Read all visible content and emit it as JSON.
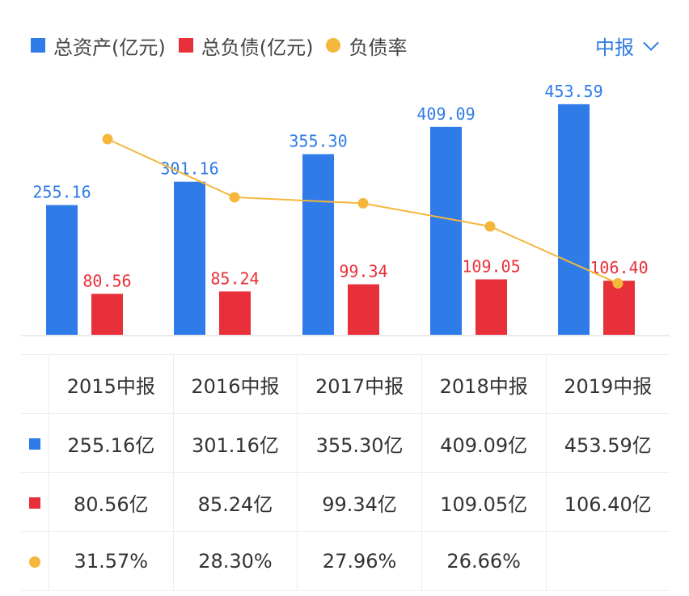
{
  "legend": {
    "assets_label": "总资产(亿元)",
    "liabilities_label": "总负债(亿元)",
    "ratio_label": "负债率"
  },
  "period_selector": {
    "label": "中报",
    "icon": "chevron-down-icon"
  },
  "colors": {
    "assets": "#2f7be8",
    "liabilities": "#e8303a",
    "ratio": "#f5b63c",
    "accent": "#2f7be0"
  },
  "chart_data": {
    "type": "bar",
    "categories": [
      "2015中报",
      "2016中报",
      "2017中报",
      "2018中报",
      "2019中报"
    ],
    "series": [
      {
        "name": "总资产(亿元)",
        "type": "bar",
        "values": [
          255.16,
          301.16,
          355.3,
          409.09,
          453.59
        ],
        "labels": [
          "255.16",
          "301.16",
          "355.30",
          "409.09",
          "453.59"
        ]
      },
      {
        "name": "总负债(亿元)",
        "type": "bar",
        "values": [
          80.56,
          85.24,
          99.34,
          109.05,
          106.4
        ],
        "labels": [
          "80.56",
          "85.24",
          "99.34",
          "109.05",
          "106.40"
        ]
      },
      {
        "name": "负债率",
        "type": "line",
        "values": [
          31.57,
          28.3,
          27.96,
          26.66,
          23.46
        ]
      }
    ],
    "legend_position": "top-left"
  },
  "table": {
    "headers": [
      "2015中报",
      "2016中报",
      "2017中报",
      "2018中报",
      "2019中报"
    ],
    "rows": [
      {
        "marker": "assets",
        "cells": [
          "255.16亿",
          "301.16亿",
          "355.30亿",
          "409.09亿",
          "453.59亿"
        ]
      },
      {
        "marker": "liabilities",
        "cells": [
          "80.56亿",
          "85.24亿",
          "99.34亿",
          "109.05亿",
          "106.40亿"
        ]
      },
      {
        "marker": "ratio",
        "cells": [
          "31.57%",
          "28.30%",
          "27.96%",
          "26.66%",
          ""
        ]
      }
    ]
  }
}
